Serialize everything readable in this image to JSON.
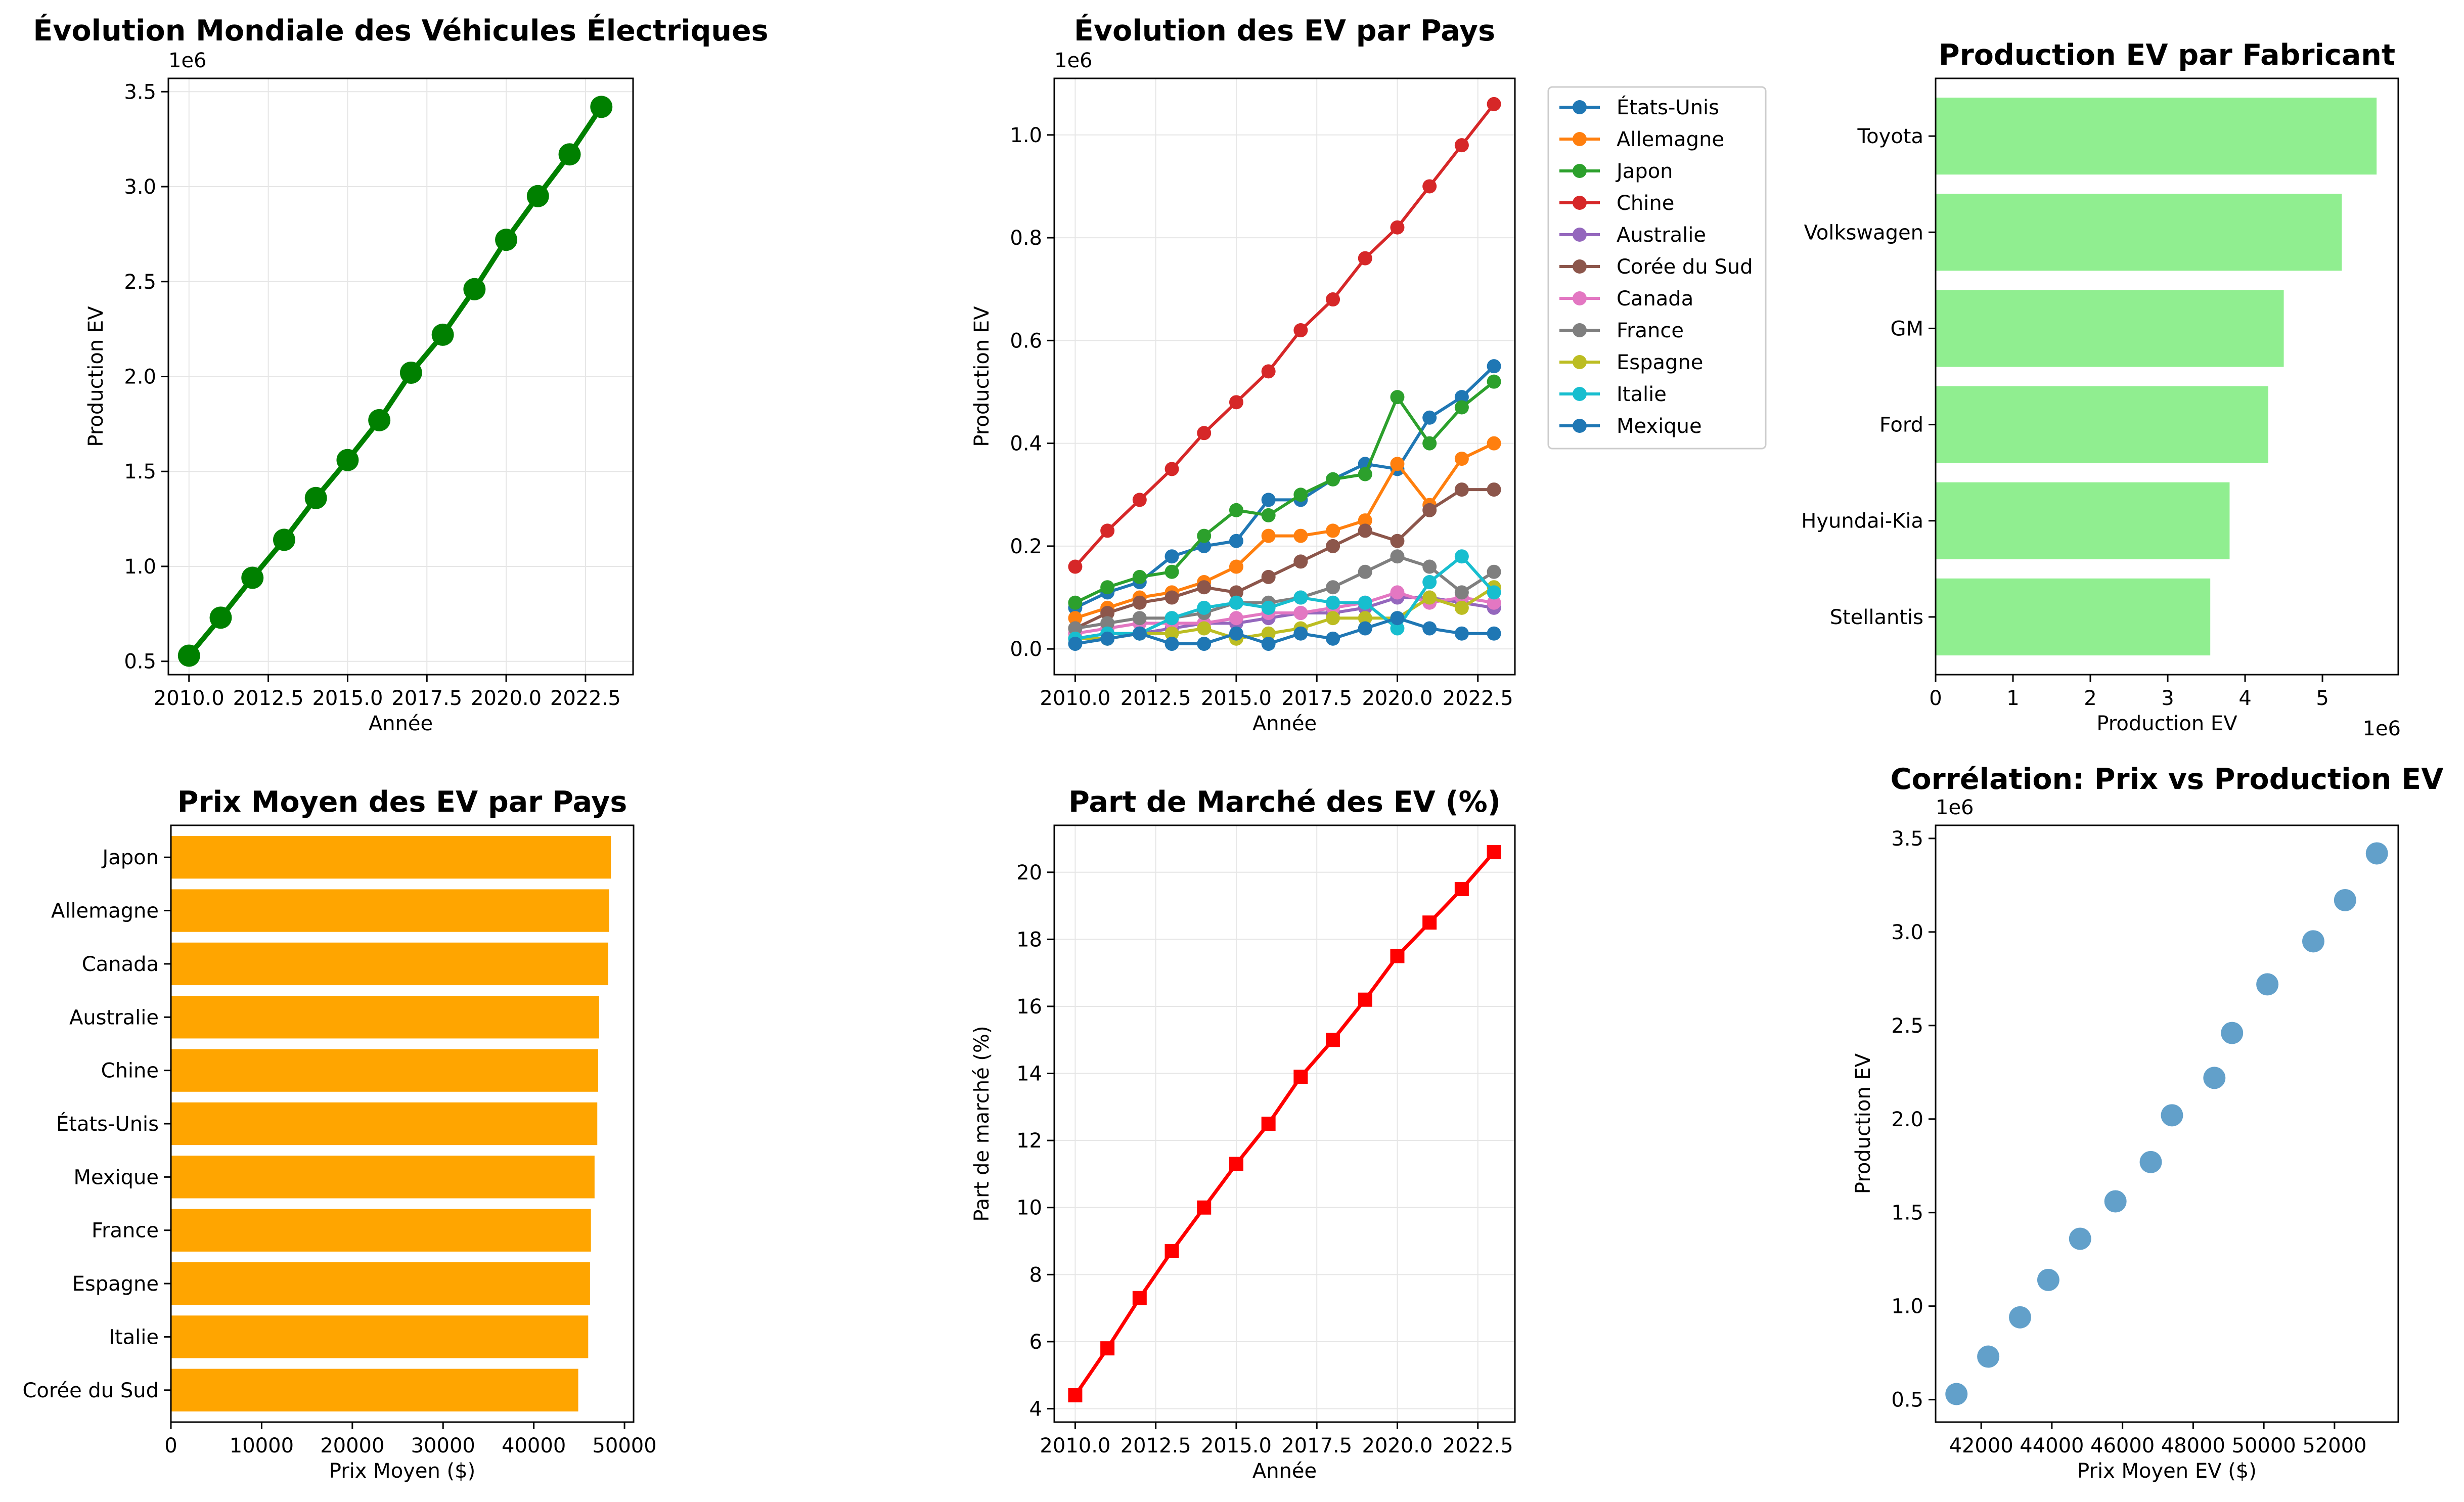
{
  "figure": {
    "colors": {
      "world": "#008000",
      "manufacturer_bar": "#90ee90",
      "price_bar": "#ffa500",
      "share_line": "#ff0000",
      "scatter": "#1f77b4",
      "grid": "#e6e6e6"
    }
  },
  "chart_data": [
    {
      "id": "world",
      "type": "line",
      "title": "Évolution Mondiale des Véhicules Électriques",
      "xlabel": "Année",
      "ylabel": "Production EV",
      "offset_label": "1e6",
      "x": [
        2010,
        2011,
        2012,
        2013,
        2014,
        2015,
        2016,
        2017,
        2018,
        2019,
        2020,
        2021,
        2022,
        2023
      ],
      "series": [
        {
          "values": [
            530000,
            730000,
            940000,
            1140000,
            1360000,
            1560000,
            1770000,
            2020000,
            2220000,
            2460000,
            2720000,
            2950000,
            3170000,
            3420000
          ]
        }
      ],
      "xlim": [
        2009.35,
        2024.0
      ],
      "ylim": [
        0.43,
        3.57
      ],
      "xticks": [
        2010.0,
        2012.5,
        2015.0,
        2017.5,
        2020.0,
        2022.5
      ],
      "xtick_labels": [
        "2010.0",
        "2012.5",
        "2015.0",
        "2017.5",
        "2020.0",
        "2022.5"
      ],
      "yticks": [
        0.5,
        1.0,
        1.5,
        2.0,
        2.5,
        3.0,
        3.5
      ],
      "ytick_labels": [
        "0.5",
        "1.0",
        "1.5",
        "2.0",
        "2.5",
        "3.0",
        "3.5"
      ],
      "grid": true
    },
    {
      "id": "countries",
      "type": "line",
      "title": "Évolution des EV par Pays",
      "xlabel": "Année",
      "ylabel": "Production EV",
      "offset_label": "1e6",
      "x": [
        2010,
        2011,
        2012,
        2013,
        2014,
        2015,
        2016,
        2017,
        2018,
        2019,
        2020,
        2021,
        2022,
        2023
      ],
      "series": [
        {
          "name": "États-Unis",
          "color": "#1f77b4",
          "values": [
            0.08,
            0.11,
            0.13,
            0.18,
            0.2,
            0.21,
            0.29,
            0.29,
            0.33,
            0.36,
            0.35,
            0.45,
            0.49,
            0.55
          ]
        },
        {
          "name": "Allemagne",
          "color": "#ff7f0e",
          "values": [
            0.06,
            0.08,
            0.1,
            0.11,
            0.13,
            0.16,
            0.22,
            0.22,
            0.23,
            0.25,
            0.36,
            0.28,
            0.37,
            0.4
          ]
        },
        {
          "name": "Japon",
          "color": "#2ca02c",
          "values": [
            0.09,
            0.12,
            0.14,
            0.15,
            0.22,
            0.27,
            0.26,
            0.3,
            0.33,
            0.34,
            0.49,
            0.4,
            0.47,
            0.52
          ]
        },
        {
          "name": "Chine",
          "color": "#d62728",
          "values": [
            0.16,
            0.23,
            0.29,
            0.35,
            0.42,
            0.48,
            0.54,
            0.62,
            0.68,
            0.76,
            0.82,
            0.9,
            0.98,
            1.06
          ]
        },
        {
          "name": "Australie",
          "color": "#9467bd",
          "values": [
            0.02,
            0.03,
            0.03,
            0.04,
            0.05,
            0.05,
            0.06,
            0.07,
            0.07,
            0.08,
            0.1,
            0.1,
            0.09,
            0.08
          ]
        },
        {
          "name": "Corée du Sud",
          "color": "#8c564b",
          "values": [
            0.04,
            0.07,
            0.09,
            0.1,
            0.12,
            0.11,
            0.14,
            0.17,
            0.2,
            0.23,
            0.21,
            0.27,
            0.31,
            0.31
          ]
        },
        {
          "name": "Canada",
          "color": "#e377c2",
          "values": [
            0.03,
            0.04,
            0.05,
            0.05,
            0.05,
            0.06,
            0.07,
            0.07,
            0.08,
            0.09,
            0.11,
            0.09,
            0.1,
            0.09
          ]
        },
        {
          "name": "France",
          "color": "#7f7f7f",
          "values": [
            0.04,
            0.05,
            0.06,
            0.06,
            0.07,
            0.09,
            0.09,
            0.1,
            0.12,
            0.15,
            0.18,
            0.16,
            0.11,
            0.15
          ]
        },
        {
          "name": "Espagne",
          "color": "#bcbd22",
          "values": [
            0.02,
            0.02,
            0.03,
            0.03,
            0.04,
            0.02,
            0.03,
            0.04,
            0.06,
            0.06,
            0.06,
            0.1,
            0.08,
            0.12
          ]
        },
        {
          "name": "Italie",
          "color": "#17becf",
          "values": [
            0.02,
            0.03,
            0.03,
            0.06,
            0.08,
            0.09,
            0.08,
            0.1,
            0.09,
            0.09,
            0.04,
            0.13,
            0.18,
            0.11
          ]
        },
        {
          "name": "Mexique",
          "color": "#1f77b4",
          "values": [
            0.01,
            0.02,
            0.03,
            0.01,
            0.01,
            0.03,
            0.01,
            0.03,
            0.02,
            0.04,
            0.06,
            0.04,
            0.03,
            0.03
          ]
        }
      ],
      "xlim": [
        2009.35,
        2023.65
      ],
      "ylim": [
        -0.05,
        1.11
      ],
      "xticks": [
        2010.0,
        2012.5,
        2015.0,
        2017.5,
        2020.0,
        2022.5
      ],
      "xtick_labels": [
        "2010.0",
        "2012.5",
        "2015.0",
        "2017.5",
        "2020.0",
        "2022.5"
      ],
      "yticks": [
        0.0,
        0.2,
        0.4,
        0.6,
        0.8,
        1.0
      ],
      "ytick_labels": [
        "0.0",
        "0.2",
        "0.4",
        "0.6",
        "0.8",
        "1.0"
      ],
      "legend": "outside-right",
      "grid": true
    },
    {
      "id": "manufacturers",
      "type": "bar",
      "orientation": "horizontal",
      "title": "Production EV par Fabricant",
      "xlabel": "Production EV",
      "ylabel": "",
      "offset_label": "1e6",
      "categories": [
        "Toyota",
        "Volkswagen",
        "GM",
        "Ford",
        "Hyundai-Kia",
        "Stellantis"
      ],
      "values": [
        5.7,
        5.25,
        4.5,
        4.3,
        3.8,
        3.55
      ],
      "xlim": [
        0,
        5.98
      ],
      "xticks": [
        0,
        1,
        2,
        3,
        4,
        5
      ],
      "xtick_labels": [
        "0",
        "1",
        "2",
        "3",
        "4",
        "5"
      ],
      "grid": false
    },
    {
      "id": "prices",
      "type": "bar",
      "orientation": "horizontal",
      "title": "Prix Moyen des EV par Pays",
      "xlabel": "Prix Moyen ($)",
      "ylabel": "",
      "categories": [
        "Japon",
        "Allemagne",
        "Canada",
        "Australie",
        "Chine",
        "États-Unis",
        "Mexique",
        "France",
        "Espagne",
        "Italie",
        "Corée du Sud"
      ],
      "values": [
        48500,
        48300,
        48200,
        47200,
        47100,
        47000,
        46700,
        46300,
        46200,
        46000,
        44900
      ],
      "xlim": [
        0,
        51000
      ],
      "xticks": [
        0,
        10000,
        20000,
        30000,
        40000,
        50000
      ],
      "xtick_labels": [
        "0",
        "10000",
        "20000",
        "30000",
        "40000",
        "50000"
      ],
      "grid": false
    },
    {
      "id": "share",
      "type": "line",
      "title": "Part de Marché des EV (%)",
      "xlabel": "Année",
      "ylabel": "Part de marché (%)",
      "x": [
        2010,
        2011,
        2012,
        2013,
        2014,
        2015,
        2016,
        2017,
        2018,
        2019,
        2020,
        2021,
        2022,
        2023
      ],
      "series": [
        {
          "values": [
            4.4,
            5.8,
            7.3,
            8.7,
            10.0,
            11.3,
            12.5,
            13.9,
            15.0,
            16.2,
            17.5,
            18.5,
            19.5,
            20.6
          ]
        }
      ],
      "xlim": [
        2009.35,
        2023.65
      ],
      "ylim": [
        3.6,
        21.4
      ],
      "xticks": [
        2010.0,
        2012.5,
        2015.0,
        2017.5,
        2020.0,
        2022.5
      ],
      "xtick_labels": [
        "2010.0",
        "2012.5",
        "2015.0",
        "2017.5",
        "2020.0",
        "2022.5"
      ],
      "yticks": [
        4,
        6,
        8,
        10,
        12,
        14,
        16,
        18,
        20
      ],
      "ytick_labels": [
        "4",
        "6",
        "8",
        "10",
        "12",
        "14",
        "16",
        "18",
        "20"
      ],
      "grid": true
    },
    {
      "id": "scatter",
      "type": "scatter",
      "title": "Corrélation: Prix vs Production EV",
      "xlabel": "Prix Moyen EV ($)",
      "ylabel": "Production EV",
      "offset_label": "1e6",
      "x": [
        41300,
        42200,
        43100,
        43900,
        44800,
        45800,
        46800,
        47400,
        48600,
        49100,
        50100,
        51400,
        52300,
        53200
      ],
      "y": [
        0.53,
        0.73,
        0.94,
        1.14,
        1.36,
        1.56,
        1.77,
        2.02,
        2.22,
        2.46,
        2.72,
        2.95,
        3.17,
        3.42
      ],
      "xlim": [
        40710,
        53805
      ],
      "ylim": [
        0.38,
        3.57
      ],
      "xticks": [
        42000,
        44000,
        46000,
        48000,
        50000,
        52000
      ],
      "xtick_labels": [
        "42000",
        "44000",
        "46000",
        "48000",
        "50000",
        "52000"
      ],
      "yticks": [
        0.5,
        1.0,
        1.5,
        2.0,
        2.5,
        3.0,
        3.5
      ],
      "ytick_labels": [
        "0.5",
        "1.0",
        "1.5",
        "2.0",
        "2.5",
        "3.0",
        "3.5"
      ],
      "grid": false
    }
  ]
}
